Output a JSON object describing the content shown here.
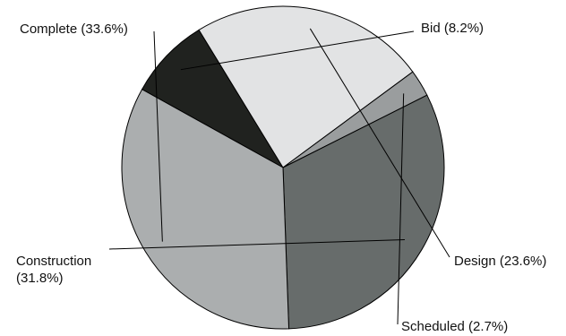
{
  "chart_data": {
    "type": "pie",
    "title": "",
    "legend": "none",
    "slices": [
      {
        "name": "Bid",
        "value": 8.2,
        "label": "Bid (8.2%)",
        "color": "#20221f"
      },
      {
        "name": "Design",
        "value": 23.6,
        "label": "Design (23.6%)",
        "color": "#e2e3e4"
      },
      {
        "name": "Scheduled",
        "value": 2.7,
        "label": "Scheduled (2.7%)",
        "color": "#9a9d9e"
      },
      {
        "name": "Construction",
        "value": 31.8,
        "label_lines": [
          "Construction",
          "(31.8%)"
        ],
        "color": "#676c6b"
      },
      {
        "name": "Complete",
        "value": 33.6,
        "label": "Complete (33.6%)",
        "color": "#abaeaf"
      }
    ]
  }
}
